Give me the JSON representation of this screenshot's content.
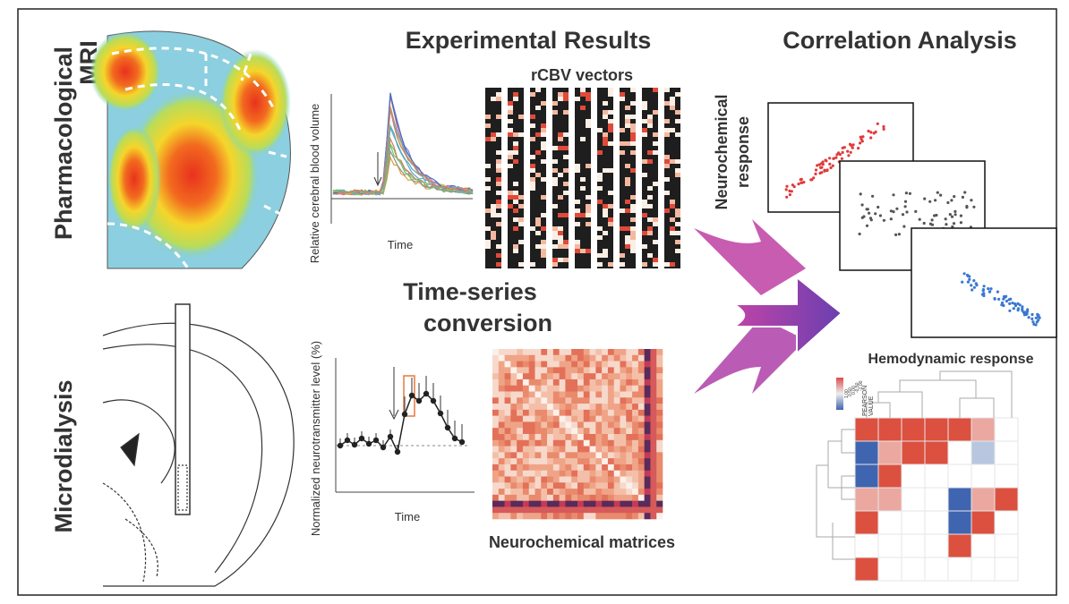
{
  "left_labels": {
    "pharmacological_mri": [
      "Pharmacological",
      "MRI"
    ],
    "microdialysis": "Microdialysis"
  },
  "experimental_results": {
    "title": "Experimental Results",
    "rcbv_title": "rCBV vectors",
    "rcbv_ylabel": "Relative cerebral blood volume",
    "rcbv_xlabel": "Time",
    "conversion_title": [
      "Time-series",
      "conversion"
    ],
    "nt_ylabel": "Normalized neurotransmitter level (%)",
    "nt_xlabel": "Time",
    "matrix_title": "Neurochemical matrices"
  },
  "correlation_analysis": {
    "title": "Correlation Analysis",
    "y_label": [
      "Neurochemical",
      "response"
    ],
    "x_label": "Hemodynamic response",
    "legend_title": [
      "PEARSON",
      "VALUE"
    ],
    "legend_labels": [
      "1.00",
      "0.50",
      "0.00",
      "-0.50",
      "-1.00"
    ]
  }
}
